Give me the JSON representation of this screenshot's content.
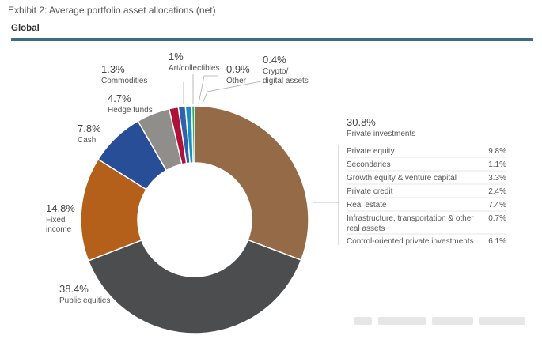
{
  "header": {
    "title": "Exhibit 2: Average portfolio asset allocations (net)",
    "region": "Global"
  },
  "colors": {
    "rule": "#3b6e86",
    "leader": "#aaaaaa",
    "breakdown_divider": "#cfcfcf"
  },
  "chart_data": {
    "type": "pie",
    "donut": true,
    "title": "Average portfolio asset allocations (net)",
    "slices": [
      {
        "label_lines": [
          "Private investments"
        ],
        "value": 30.8,
        "pct_text": "30.8%",
        "color": "#956a47"
      },
      {
        "label_lines": [
          "Public equities"
        ],
        "value": 38.4,
        "pct_text": "38.4%",
        "color": "#4b4d4f"
      },
      {
        "label_lines": [
          "Fixed",
          "income"
        ],
        "value": 14.8,
        "pct_text": "14.8%",
        "color": "#b5601a"
      },
      {
        "label_lines": [
          "Cash"
        ],
        "value": 7.8,
        "pct_text": "7.8%",
        "color": "#284e98"
      },
      {
        "label_lines": [
          "Hedge funds"
        ],
        "value": 4.7,
        "pct_text": "4.7%",
        "color": "#8f8e8b"
      },
      {
        "label_lines": [
          "Commodities"
        ],
        "value": 1.3,
        "pct_text": "1.3%",
        "color": "#ae1238"
      },
      {
        "label_lines": [
          "Art/collectibles"
        ],
        "value": 1.0,
        "pct_text": "1%",
        "color": "#2d63ac"
      },
      {
        "label_lines": [
          "Other"
        ],
        "value": 0.9,
        "pct_text": "0.9%",
        "color": "#1b8fbf"
      },
      {
        "label_lines": [
          "Crypto/",
          "digital assets"
        ],
        "value": 0.4,
        "pct_text": "0.4%",
        "color": "#35ab62"
      }
    ],
    "breakdown": {
      "parent": "Private investments",
      "items": [
        {
          "label_lines": [
            "Private equity"
          ],
          "value": "9.8%"
        },
        {
          "label_lines": [
            "Secondaries"
          ],
          "value": "1.1%"
        },
        {
          "label_lines": [
            "Growth equity & venture capital"
          ],
          "value": "3.3%"
        },
        {
          "label_lines": [
            "Private credit"
          ],
          "value": "2.4%"
        },
        {
          "label_lines": [
            "Real estate"
          ],
          "value": "7.4%"
        },
        {
          "label_lines": [
            "Infrastructure, transportation & other",
            "real assets"
          ],
          "value": "0.7%"
        },
        {
          "label_lines": [
            "Control-oriented private investments"
          ],
          "value": "6.1%"
        }
      ]
    }
  }
}
